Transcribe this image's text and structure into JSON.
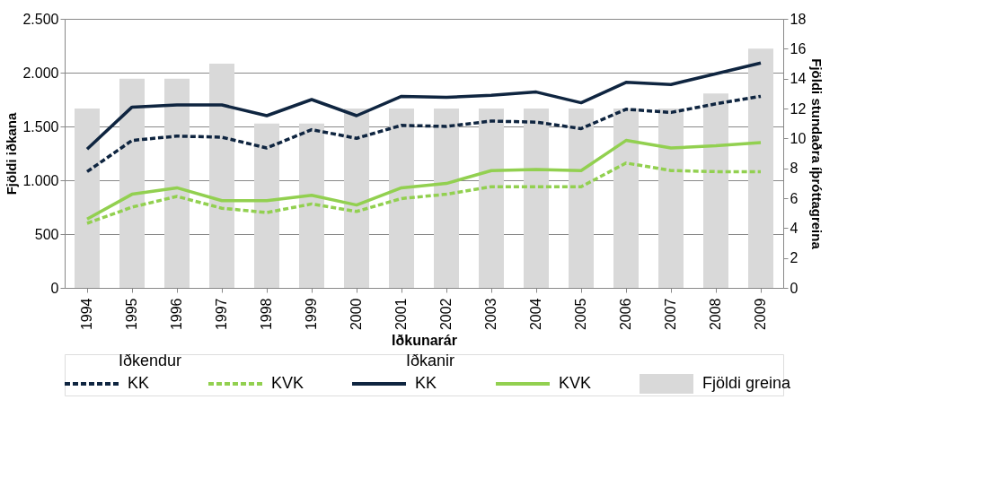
{
  "chart_data": {
    "type": "line",
    "xlabel": "Iðkunarár",
    "ylabel": "Fjöldi iðkana",
    "y2label": "Fjöldi stundaðra íþróttagreina",
    "categories": [
      "1994",
      "1995",
      "1996",
      "1997",
      "1998",
      "1999",
      "2000",
      "2001",
      "2002",
      "2003",
      "2004",
      "2005",
      "2006",
      "2007",
      "2008",
      "2009"
    ],
    "series": [
      {
        "name": "KK",
        "color": "#0f2540",
        "line_style": "dashed",
        "values": [
          1080,
          1370,
          1410,
          1400,
          1300,
          1470,
          1390,
          1510,
          1500,
          1550,
          1540,
          1480,
          1660,
          1630,
          1710,
          1780
        ]
      },
      {
        "name": "KVK",
        "color": "#92d050",
        "line_style": "dashed",
        "values": [
          600,
          750,
          850,
          740,
          700,
          780,
          710,
          830,
          870,
          940,
          940,
          940,
          1160,
          1090,
          1080,
          1080
        ]
      },
      {
        "name": "KK",
        "color": "#0f2540",
        "line_style": "solid",
        "values": [
          1290,
          1680,
          1700,
          1700,
          1600,
          1750,
          1600,
          1780,
          1770,
          1790,
          1820,
          1720,
          1910,
          1890,
          1990,
          2090
        ]
      },
      {
        "name": "KVK",
        "color": "#92d050",
        "line_style": "solid",
        "values": [
          640,
          870,
          930,
          810,
          810,
          860,
          770,
          930,
          970,
          1090,
          1100,
          1090,
          1370,
          1300,
          1320,
          1350
        ]
      },
      {
        "name": "Fjöldi greina",
        "color": "#d9d9d9",
        "type": "bar",
        "axis": "y2",
        "values": [
          12,
          14,
          14,
          15,
          11,
          11,
          12,
          12,
          12,
          12,
          12,
          12,
          12,
          12,
          13,
          16
        ]
      }
    ],
    "ylim": [
      0,
      2500
    ],
    "yticks": [
      0,
      500,
      {
        "value": 1000,
        "label": "1.000"
      },
      {
        "value": 1500,
        "label": "1.500"
      },
      {
        "value": 2000,
        "label": "2.000"
      },
      {
        "value": 2500,
        "label": "2.500"
      }
    ],
    "y2lim": [
      0,
      18
    ],
    "y2ticks": [
      0,
      2,
      4,
      6,
      8,
      10,
      12,
      14,
      16,
      18
    ],
    "grid": "y",
    "legend": "bottom",
    "annotations": [
      "Iðkendur",
      "Iðkanir"
    ]
  }
}
